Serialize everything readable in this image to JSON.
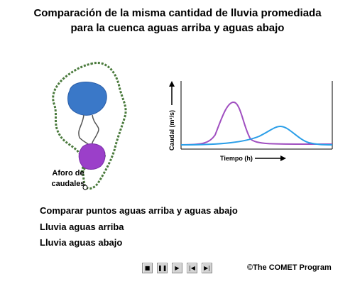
{
  "title": {
    "line1": "Comparación de la misma cantidad de lluvia promediada",
    "line2": "para la cuenca aguas arriba y aguas abajo"
  },
  "basin": {
    "gauge_label_line1": "Aforo de",
    "gauge_label_line2": "caudales",
    "upstream_color": "#3a78c8",
    "downstream_color": "#9b3fc9",
    "boundary_color": "#4a7a3c"
  },
  "graph": {
    "ylabel": "Caudal (m³/s)",
    "xlabel": "Tiempo (h)",
    "purple_curve_color": "#a04fc0",
    "blue_curve_color": "#2a9ee8"
  },
  "links": [
    "Comparar puntos aguas arriba y aguas abajo",
    "Lluvia aguas arriba",
    "Lluvia aguas abajo"
  ],
  "controls": [
    {
      "name": "stop",
      "glyph": "■"
    },
    {
      "name": "pause",
      "glyph": "❚❚"
    },
    {
      "name": "play",
      "glyph": "▶"
    },
    {
      "name": "back",
      "glyph": "|◀"
    },
    {
      "name": "forward",
      "glyph": "▶|"
    }
  ],
  "copyright": "©The COMET Program"
}
